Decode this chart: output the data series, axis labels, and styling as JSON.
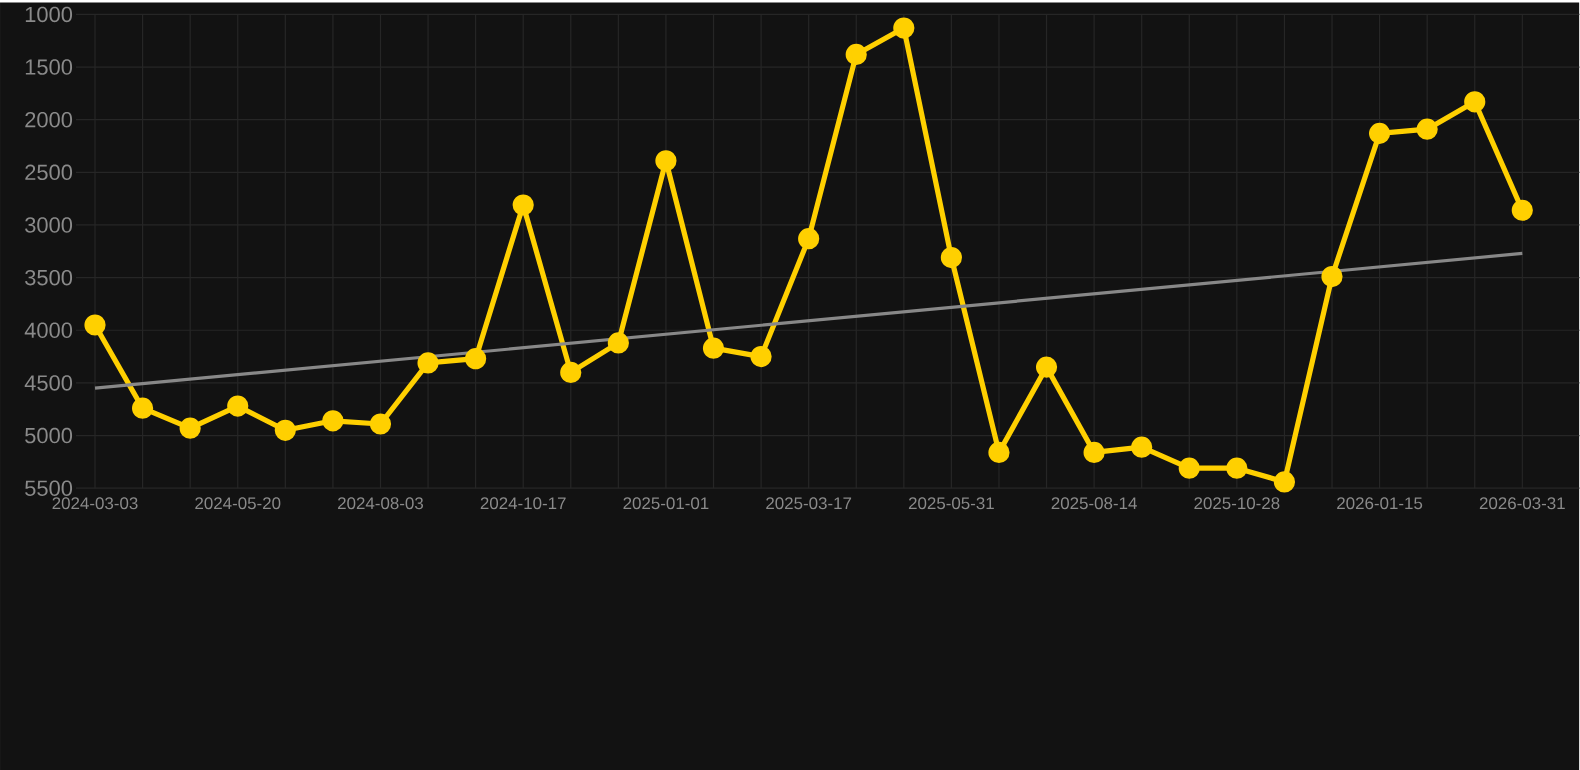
{
  "chart_data": {
    "type": "line",
    "categories": [
      "2024-03-03",
      null,
      null,
      "2024-05-20",
      null,
      null,
      "2024-08-03",
      null,
      null,
      "2024-10-17",
      null,
      null,
      "2025-01-01",
      null,
      null,
      "2025-03-17",
      null,
      null,
      "2025-05-31",
      null,
      null,
      "2025-08-14",
      null,
      null,
      "2025-10-28",
      null,
      null,
      "2026-01-15",
      null,
      null,
      "2026-03-31"
    ],
    "series": [
      {
        "color": "#ffd000",
        "marker": "circle",
        "values": [
          3950,
          4740,
          4930,
          4720,
          4950,
          4860,
          4890,
          4310,
          4270,
          2810,
          4400,
          4120,
          2390,
          4170,
          4250,
          3130,
          1380,
          1130,
          3310,
          5160,
          4350,
          5160,
          5110,
          5310,
          5310,
          5440,
          3490,
          2130,
          2090,
          1830,
          2860
        ]
      },
      {
        "type": "line",
        "color": "#888888",
        "marker": "none",
        "values": [
          4550,
          null,
          null,
          null,
          null,
          null,
          null,
          null,
          null,
          null,
          null,
          null,
          null,
          null,
          null,
          null,
          null,
          null,
          null,
          null,
          null,
          null,
          null,
          null,
          null,
          null,
          null,
          null,
          null,
          null,
          3270
        ]
      }
    ],
    "ylim": [
      5500,
      1000
    ],
    "yticks": [
      1000,
      1500,
      2000,
      2500,
      3000,
      3500,
      4000,
      4500,
      5000,
      5500
    ],
    "grid": true
  }
}
